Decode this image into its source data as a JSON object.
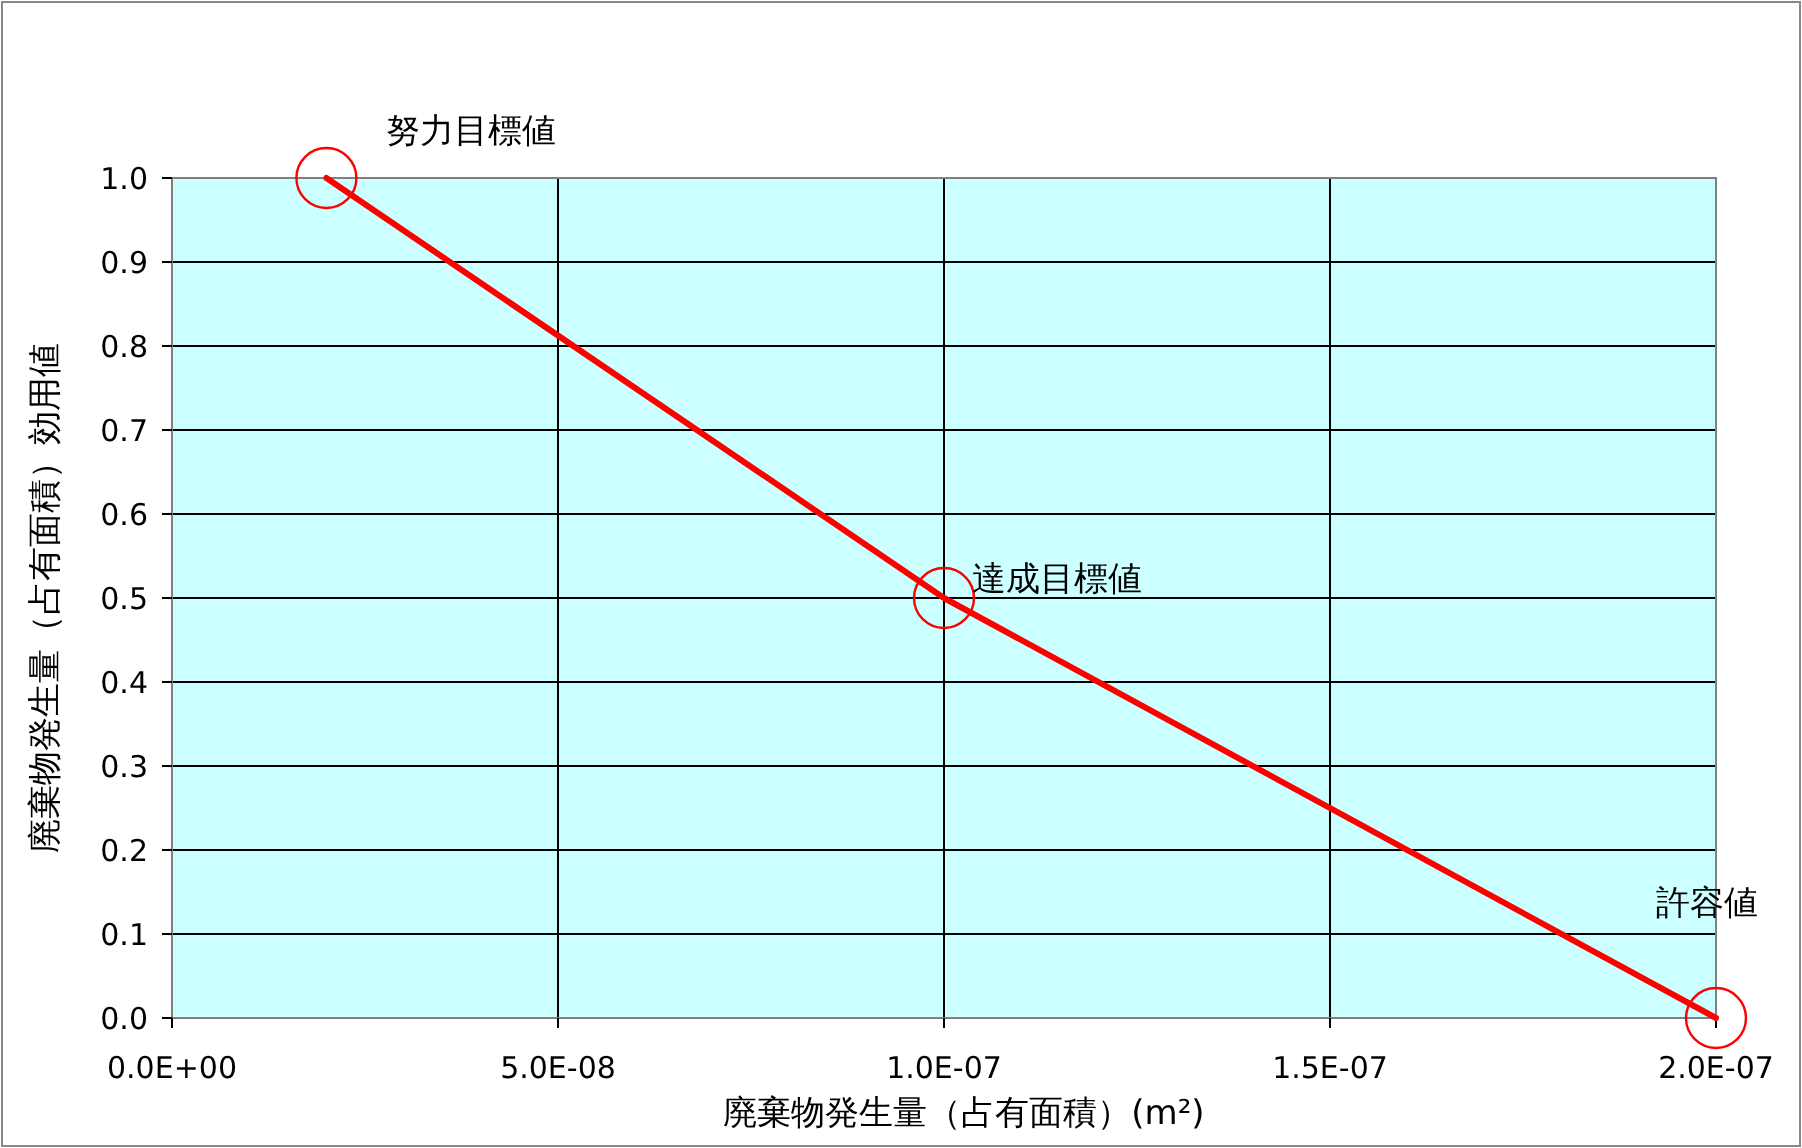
{
  "chart_data": {
    "type": "line",
    "xlabel": "廃棄物発生量（占有面積）(m²)",
    "ylabel": "廃棄物発生量（占有面積）効用値",
    "series": [
      {
        "color": "#ff0000",
        "x": [
          2e-08,
          1e-07,
          2e-07
        ],
        "values": [
          1.0,
          0.5,
          0.0
        ]
      }
    ],
    "marker": "circle",
    "line_style": "solid",
    "grid": true,
    "xlim": [
      0,
      2e-07
    ],
    "ylim": [
      0,
      1
    ],
    "xticks": [
      {
        "value": 0,
        "label": "0.0E+00"
      },
      {
        "value": 5e-08,
        "label": "5.0E-08"
      },
      {
        "value": 1e-07,
        "label": "1.0E-07"
      },
      {
        "value": 1.5e-07,
        "label": "1.5E-07"
      },
      {
        "value": 2e-07,
        "label": "2.0E-07"
      }
    ],
    "yticks": [
      {
        "value": 0,
        "label": "0.0"
      },
      {
        "value": 0.1,
        "label": "0.1"
      },
      {
        "value": 0.2,
        "label": "0.2"
      },
      {
        "value": 0.3,
        "label": "0.3"
      },
      {
        "value": 0.4,
        "label": "0.4"
      },
      {
        "value": 0.5,
        "label": "0.5"
      },
      {
        "value": 0.6,
        "label": "0.6"
      },
      {
        "value": 0.7,
        "label": "0.7"
      },
      {
        "value": 0.8,
        "label": "0.8"
      },
      {
        "value": 0.9,
        "label": "0.9"
      },
      {
        "value": 1,
        "label": "1.0"
      }
    ],
    "annotations": [
      {
        "text": "努力目標値",
        "x": 2e-08,
        "y": 1.0
      },
      {
        "text": "達成目標値",
        "x": 1e-07,
        "y": 0.5
      },
      {
        "text": "許容値",
        "x": 2e-07,
        "y": 0.0
      }
    ]
  }
}
